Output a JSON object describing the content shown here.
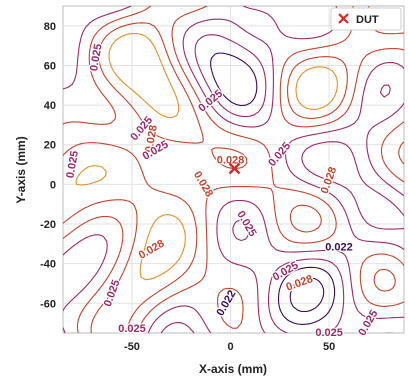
{
  "chart_data": {
    "type": "contour",
    "title": "",
    "xlabel": "X-axis (mm)",
    "ylabel": "Y-axis (mm)",
    "xlim": [
      -85,
      88
    ],
    "ylim": [
      -75,
      90
    ],
    "xticks": [
      -50,
      0,
      50
    ],
    "yticks": [
      -60,
      -40,
      -20,
      0,
      20,
      40,
      60,
      80
    ],
    "grid": true,
    "legend": {
      "position": "top-right",
      "entries": [
        {
          "label": "DUT",
          "marker": "x",
          "color": "#d42a2a"
        }
      ]
    },
    "dut_point": {
      "x": 2,
      "y": 8
    },
    "contour_levels": [
      0.022,
      0.025,
      0.028
    ],
    "level_colors": [
      "#3a0a5e",
      "#9c2a6a",
      "#e0902a"
    ],
    "contour_labels": [
      {
        "text": "0.025",
        "x": -68,
        "y": 64,
        "angle": -80,
        "color": "#9c2a6a"
      },
      {
        "text": "0.025",
        "x": -45,
        "y": 28,
        "angle": -50,
        "color": "#9c2a6a"
      },
      {
        "text": "0.028",
        "x": -40,
        "y": 23,
        "angle": -80,
        "color": "#c2452d"
      },
      {
        "text": "0.025",
        "x": -38,
        "y": 17,
        "angle": -30,
        "color": "#9c2a6a"
      },
      {
        "text": "0.025",
        "x": -10,
        "y": 42,
        "angle": -40,
        "color": "#9c2a6a"
      },
      {
        "text": "0.028",
        "x": 0,
        "y": 12,
        "angle": 0,
        "color": "#c2452d"
      },
      {
        "text": "0.025",
        "x": 25,
        "y": 15,
        "angle": -50,
        "color": "#9c2a6a"
      },
      {
        "text": "0.028",
        "x": 50,
        "y": 2,
        "angle": -70,
        "color": "#c2452d"
      },
      {
        "text": "0.025",
        "x": -80,
        "y": 10,
        "angle": -80,
        "color": "#9c2a6a"
      },
      {
        "text": "0.028",
        "x": -14,
        "y": 0,
        "angle": 60,
        "color": "#c2452d"
      },
      {
        "text": "0.025",
        "x": 8,
        "y": -20,
        "angle": 60,
        "color": "#9c2a6a"
      },
      {
        "text": "0.028",
        "x": -40,
        "y": -33,
        "angle": -30,
        "color": "#c2452d"
      },
      {
        "text": "0.025",
        "x": 28,
        "y": -44,
        "angle": -30,
        "color": "#9c2a6a"
      },
      {
        "text": "0.028",
        "x": 35,
        "y": -50,
        "angle": -20,
        "color": "#c2452d"
      },
      {
        "text": "0.022",
        "x": 55,
        "y": -32,
        "angle": 0,
        "color": "#3a0a5e"
      },
      {
        "text": "0.025",
        "x": -60,
        "y": -55,
        "angle": -70,
        "color": "#9c2a6a"
      },
      {
        "text": "0.022",
        "x": -2,
        "y": -60,
        "angle": -60,
        "color": "#3a0a5e"
      },
      {
        "text": "0.025",
        "x": -50,
        "y": -73,
        "angle": 0,
        "color": "#9c2a6a"
      },
      {
        "text": "0.025",
        "x": 70,
        "y": -70,
        "angle": -60,
        "color": "#9c2a6a"
      },
      {
        "text": "0.025",
        "x": 50,
        "y": -75,
        "angle": 0,
        "color": "#9c2a6a"
      }
    ]
  }
}
